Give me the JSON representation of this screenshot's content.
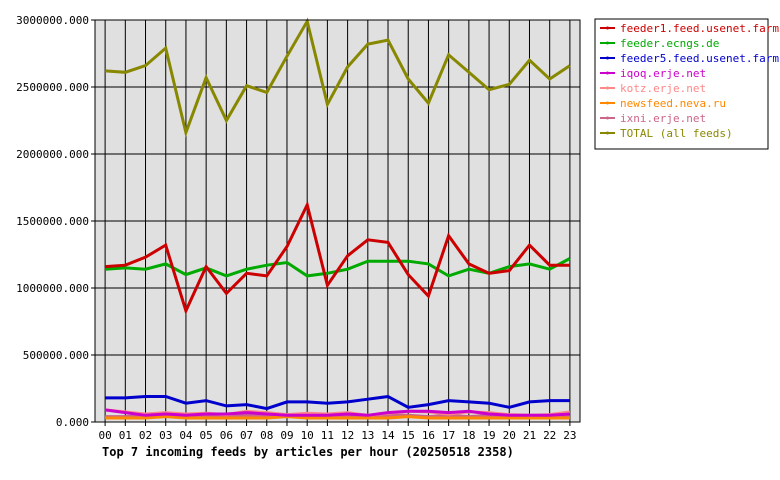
{
  "chart_data": {
    "type": "line",
    "title": "Top 7 incoming feeds by articles per hour (20250518 2358)",
    "xlabel": "",
    "ylabel": "",
    "categories": [
      "00",
      "01",
      "02",
      "03",
      "04",
      "05",
      "06",
      "07",
      "08",
      "09",
      "10",
      "11",
      "12",
      "13",
      "14",
      "15",
      "16",
      "17",
      "18",
      "19",
      "20",
      "21",
      "22",
      "23"
    ],
    "yticks": [
      "0.000",
      "500000.000",
      "1000000.000",
      "1500000.000",
      "2000000.000",
      "2500000.000",
      "3000000.000"
    ],
    "ylim": [
      0,
      3000000
    ],
    "grid": true,
    "legend_position": "top-right",
    "series": [
      {
        "name": "feeder1.feed.usenet.farm",
        "color": "#cc0000",
        "values": [
          1160000,
          1170000,
          1230000,
          1320000,
          830000,
          1160000,
          960000,
          1110000,
          1090000,
          1310000,
          1620000,
          1020000,
          1240000,
          1360000,
          1340000,
          1100000,
          940000,
          1390000,
          1180000,
          1110000,
          1130000,
          1320000,
          1170000,
          1170000
        ]
      },
      {
        "name": "feeder.ecngs.de",
        "color": "#00aa00",
        "values": [
          1140000,
          1150000,
          1140000,
          1180000,
          1100000,
          1150000,
          1090000,
          1140000,
          1170000,
          1190000,
          1090000,
          1110000,
          1140000,
          1200000,
          1200000,
          1200000,
          1180000,
          1090000,
          1140000,
          1110000,
          1160000,
          1180000,
          1140000,
          1220000
        ]
      },
      {
        "name": "feeder5.feed.usenet.farm",
        "color": "#0000cc",
        "values": [
          180000,
          180000,
          190000,
          190000,
          140000,
          160000,
          120000,
          130000,
          100000,
          150000,
          150000,
          140000,
          150000,
          170000,
          190000,
          110000,
          130000,
          160000,
          150000,
          140000,
          110000,
          150000,
          160000,
          160000
        ]
      },
      {
        "name": "iqoq.erje.net",
        "color": "#cc00cc",
        "values": [
          90000,
          70000,
          50000,
          60000,
          50000,
          60000,
          60000,
          70000,
          60000,
          50000,
          50000,
          50000,
          60000,
          50000,
          70000,
          80000,
          80000,
          70000,
          80000,
          60000,
          50000,
          50000,
          50000,
          60000
        ]
      },
      {
        "name": "kotz.erje.net",
        "color": "#ff8888",
        "values": [
          90000,
          75000,
          60000,
          70000,
          60000,
          65000,
          55000,
          80000,
          70000,
          55000,
          65000,
          60000,
          70000,
          50000,
          65000,
          80000,
          75000,
          60000,
          75000,
          70000,
          55000,
          50000,
          55000,
          75000
        ]
      },
      {
        "name": "newsfeed.neva.ru",
        "color": "#ff8800",
        "values": [
          30000,
          30000,
          30000,
          40000,
          30000,
          30000,
          30000,
          30000,
          30000,
          40000,
          30000,
          30000,
          30000,
          30000,
          30000,
          40000,
          30000,
          30000,
          30000,
          30000,
          30000,
          30000,
          30000,
          30000
        ]
      },
      {
        "name": "ixni.erje.net",
        "color": "#cc6688",
        "values": [
          40000,
          40000,
          50000,
          50000,
          40000,
          50000,
          40000,
          50000,
          40000,
          50000,
          50000,
          40000,
          50000,
          40000,
          50000,
          50000,
          40000,
          50000,
          40000,
          50000,
          40000,
          40000,
          40000,
          40000
        ]
      },
      {
        "name": "TOTAL (all feeds)",
        "color": "#888800",
        "values": [
          2620000,
          2610000,
          2660000,
          2790000,
          2160000,
          2570000,
          2250000,
          2510000,
          2460000,
          2730000,
          2990000,
          2370000,
          2650000,
          2820000,
          2850000,
          2560000,
          2380000,
          2740000,
          2610000,
          2480000,
          2520000,
          2700000,
          2560000,
          2660000
        ]
      }
    ]
  }
}
